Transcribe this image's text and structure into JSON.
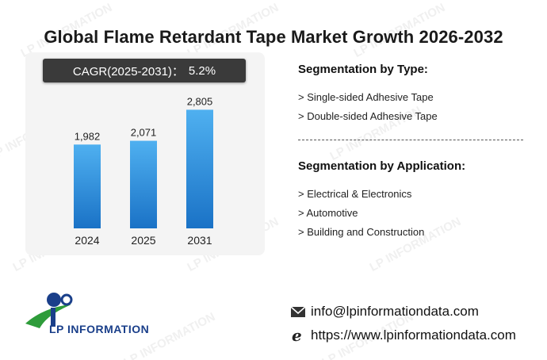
{
  "title": "Global Flame Retardant Tape Market Growth 2026-2032",
  "cagr": {
    "label": "CAGR(2025-2031)：",
    "value": "5.2%"
  },
  "chart_data": {
    "type": "bar",
    "categories": [
      "2024",
      "2025",
      "2031"
    ],
    "values": [
      1982,
      2071,
      2805
    ],
    "value_labels": [
      "1,982",
      "2,071",
      "2,805"
    ],
    "title": "",
    "xlabel": "",
    "ylabel": "",
    "ylim": [
      0,
      3000
    ],
    "grid": false,
    "bar_color_top": "#4fb0f0",
    "bar_color_bottom": "#1a72c6"
  },
  "segmentation_type": {
    "heading": "Segmentation by Type:",
    "items": [
      "> Single-sided Adhesive Tape",
      "> Double-sided Adhesive Tape"
    ]
  },
  "segmentation_application": {
    "heading": "Segmentation by Application:",
    "items": [
      "> Electrical & Electronics",
      "> Automotive",
      "> Building and Construction"
    ]
  },
  "logo": {
    "text": "LP INFORMATION",
    "icon": "lp-information-logo"
  },
  "watermark_text": "LP INFORMATION",
  "contact": {
    "email": "info@lpinformationdata.com",
    "email_icon": "envelope-icon",
    "website": "https://www.lpinformationdata.com",
    "website_icon": "browser-e-icon"
  },
  "colors": {
    "accent_blue": "#1a72c6",
    "logo_green": "#2e9c3a",
    "logo_navy": "#1a3f8a",
    "cagr_bg": "#3a3a3a"
  }
}
